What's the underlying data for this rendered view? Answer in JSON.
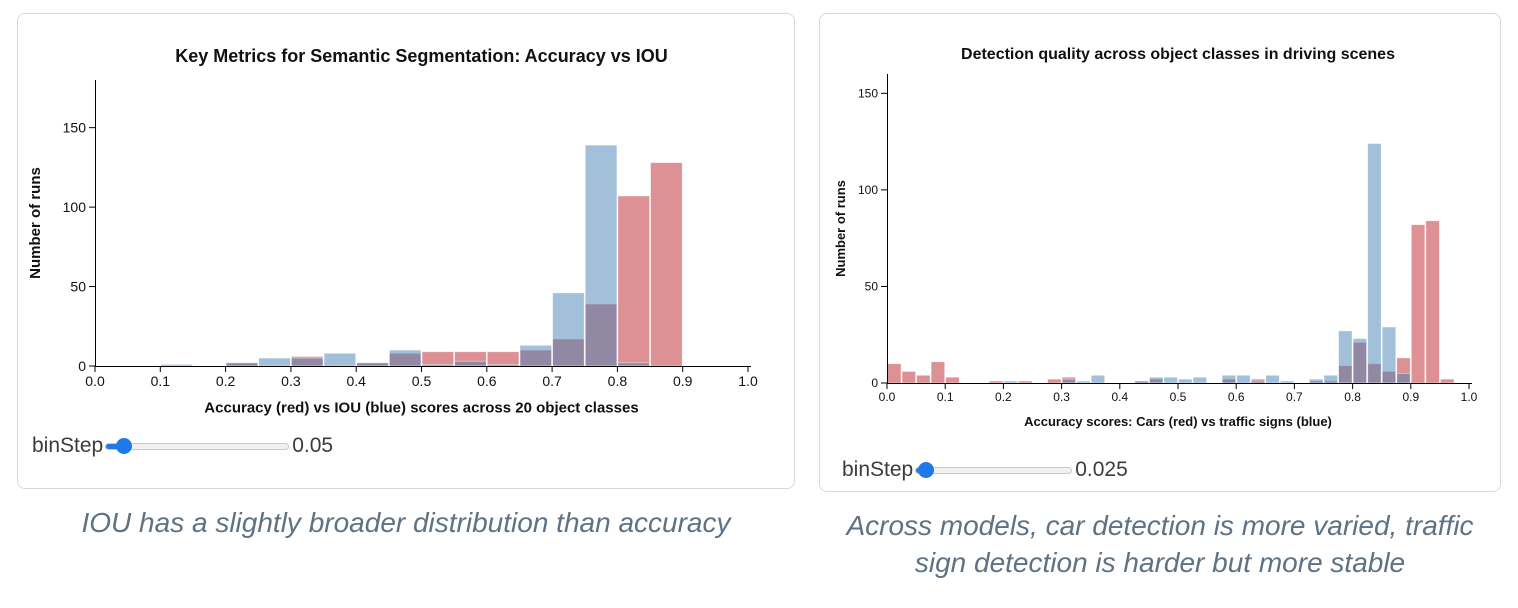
{
  "colors": {
    "red": "#bb2329",
    "blue": "#4682b4",
    "bar_opacity": 0.5,
    "axis": "#000000",
    "chart_text": "#111111",
    "panel_border": "#d9d9d9",
    "caption_text": "#5e7284",
    "slider_accent": "#1d7ae8",
    "slider_track": "#f1f1f1",
    "slider_track_border": "#c9c9c9"
  },
  "panels": [
    {
      "id": "left",
      "caption": "IOU has a slightly broader distribution than accuracy",
      "slider": {
        "label": "binStep",
        "value": "0.05",
        "fraction": 0.1
      },
      "chart_data": {
        "type": "bar",
        "subtype": "overlapping-histogram",
        "title": "Key Metrics for Semantic Segmentation: Accuracy vs IOU",
        "xlabel": "Accuracy (red) vs IOU (blue) scores across 20 object classes",
        "ylabel": "Number of runs",
        "xlim": [
          0.0,
          1.0
        ],
        "ylim": [
          0,
          180
        ],
        "x_ticks": [
          0.0,
          0.1,
          0.2,
          0.3,
          0.4,
          0.5,
          0.6,
          0.7,
          0.8,
          0.9,
          1.0
        ],
        "y_ticks": [
          0,
          50,
          100,
          150
        ],
        "bin_width": 0.05,
        "grid": false,
        "legend_position": "none",
        "series": [
          {
            "name": "Accuracy",
            "color_key": "red",
            "bins": [
              [
                0.2,
                2
              ],
              [
                0.3,
                6
              ],
              [
                0.4,
                2
              ],
              [
                0.45,
                8
              ],
              [
                0.5,
                9
              ],
              [
                0.55,
                9
              ],
              [
                0.6,
                9
              ],
              [
                0.65,
                10
              ],
              [
                0.7,
                17
              ],
              [
                0.75,
                39
              ],
              [
                0.8,
                107
              ],
              [
                0.85,
                128
              ]
            ]
          },
          {
            "name": "IOU",
            "color_key": "blue",
            "bins": [
              [
                0.1,
                1
              ],
              [
                0.2,
                2
              ],
              [
                0.25,
                5
              ],
              [
                0.3,
                5
              ],
              [
                0.35,
                8
              ],
              [
                0.4,
                2
              ],
              [
                0.45,
                10
              ],
              [
                0.5,
                1
              ],
              [
                0.55,
                3
              ],
              [
                0.6,
                1
              ],
              [
                0.65,
                13
              ],
              [
                0.7,
                46
              ],
              [
                0.75,
                139
              ],
              [
                0.8,
                2
              ]
            ]
          }
        ]
      }
    },
    {
      "id": "right",
      "caption": "Across models, car detection is more varied, traffic sign detection is harder but more stable",
      "slider": {
        "label": "binStep",
        "value": "0.025",
        "fraction": 0.06
      },
      "chart_data": {
        "type": "bar",
        "subtype": "overlapping-histogram",
        "title": "Detection quality across object classes in driving scenes",
        "xlabel": "Accuracy scores: Cars (red) vs traffic signs (blue)",
        "ylabel": "Number of runs",
        "xlim": [
          0.0,
          1.0
        ],
        "ylim": [
          0,
          160
        ],
        "x_ticks": [
          0.0,
          0.1,
          0.2,
          0.3,
          0.4,
          0.5,
          0.6,
          0.7,
          0.8,
          0.9,
          1.0
        ],
        "y_ticks": [
          0,
          50,
          100,
          150
        ],
        "bin_width": 0.025,
        "grid": false,
        "legend_position": "none",
        "series": [
          {
            "name": "Cars",
            "color_key": "red",
            "bins": [
              [
                0.0,
                10
              ],
              [
                0.025,
                6
              ],
              [
                0.05,
                4
              ],
              [
                0.075,
                11
              ],
              [
                0.1,
                3
              ],
              [
                0.175,
                1
              ],
              [
                0.225,
                1
              ],
              [
                0.275,
                2
              ],
              [
                0.3,
                3
              ],
              [
                0.425,
                1
              ],
              [
                0.45,
                2
              ],
              [
                0.575,
                2
              ],
              [
                0.625,
                2
              ],
              [
                0.725,
                1
              ],
              [
                0.75,
                1
              ],
              [
                0.775,
                9
              ],
              [
                0.8,
                21
              ],
              [
                0.825,
                10
              ],
              [
                0.85,
                6
              ],
              [
                0.875,
                13
              ],
              [
                0.9,
                82
              ],
              [
                0.925,
                84
              ],
              [
                0.95,
                2
              ]
            ]
          },
          {
            "name": "Traffic signs",
            "color_key": "blue",
            "bins": [
              [
                0.2,
                1
              ],
              [
                0.3,
                2
              ],
              [
                0.325,
                1
              ],
              [
                0.35,
                4
              ],
              [
                0.425,
                1
              ],
              [
                0.45,
                3
              ],
              [
                0.475,
                3
              ],
              [
                0.5,
                2
              ],
              [
                0.525,
                3
              ],
              [
                0.575,
                4
              ],
              [
                0.6,
                4
              ],
              [
                0.625,
                1
              ],
              [
                0.65,
                4
              ],
              [
                0.675,
                1
              ],
              [
                0.725,
                2
              ],
              [
                0.75,
                4
              ],
              [
                0.775,
                27
              ],
              [
                0.8,
                23
              ],
              [
                0.825,
                124
              ],
              [
                0.85,
                29
              ],
              [
                0.875,
                5
              ]
            ]
          }
        ]
      }
    }
  ]
}
